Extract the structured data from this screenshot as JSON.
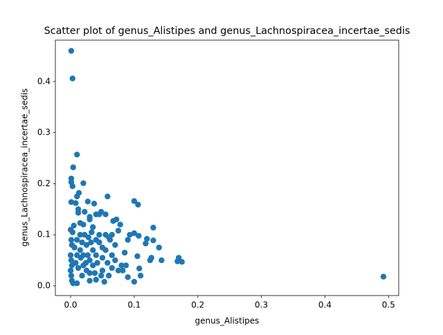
{
  "chart_data": {
    "type": "scatter",
    "title": "Scatter plot of genus_Alistipes and genus_Lachnospiracea_incertae_sedis",
    "xlabel": "genus_Alistipes",
    "ylabel": "genus_Lachnospiracea_incertae_sedis",
    "color": "#1f77b4",
    "xlim": [
      -0.024,
      0.516
    ],
    "ylim": [
      -0.019,
      0.481
    ],
    "xticks": [
      {
        "value": 0,
        "label": "0.0"
      },
      0.1,
      0.2,
      0.3,
      0.4,
      0.5
    ],
    "yticks": [
      {
        "value": 0,
        "label": "0.0"
      },
      0.1,
      0.2,
      0.3,
      0.4
    ],
    "x": [
      0.001,
      0.003,
      0.01,
      0.004,
      0.001,
      0.001,
      0.02,
      0.003,
      0.013,
      0.01,
      0.058,
      0.001,
      0.008,
      0.027,
      0.037,
      0.1,
      0.106,
      0.492,
      0.17,
      0.175,
      0.168,
      0.143,
      0.139,
      0.13,
      0.13,
      0.12,
      0.118,
      0.125,
      0.127,
      0.11,
      0.1,
      0.09,
      0.108,
      0.105,
      0.1,
      0.107,
      0.09,
      0.093,
      0.087,
      0.08,
      0.075,
      0.078,
      0.075,
      0.072,
      0.067,
      0.065,
      0.06,
      0.062,
      0.055,
      0.048,
      0.04,
      0.045,
      0.03,
      0.03,
      0.022,
      0.012,
      0.012,
      0.035,
      0.02,
      0.015,
      0.005,
      0,
      0.003,
      0.001,
      0.002,
      0,
      0.001,
      0.002,
      0,
      0.001,
      0.002,
      0.004,
      0.01,
      0.03,
      0.04,
      0.053,
      0.06,
      0.05,
      0.01,
      0.015,
      0.02,
      0.025,
      0.03,
      0.035,
      0.04,
      0.045,
      0.05,
      0.055,
      0.02,
      0.025,
      0.03,
      0.035,
      0.04,
      0.015,
      0.01,
      0.012,
      0.018,
      0.022,
      0.028,
      0.033,
      0.045,
      0.05,
      0.058,
      0.065,
      0.07,
      0.07,
      0.085,
      0.082,
      0.065,
      0.008,
      0.006,
      0.018,
      0.027,
      0.038,
      0.042,
      0.048,
      0.016,
      0.024,
      0.032,
      0.055
    ],
    "y": [
      0.46,
      0.406,
      0.257,
      0.232,
      0.21,
      0.203,
      0.201,
      0.195,
      0.182,
      0.175,
      0.175,
      0.164,
      0.162,
      0.165,
      0.161,
      0.166,
      0.159,
      0.018,
      0.055,
      0.047,
      0.048,
      0.05,
      0.075,
      0.114,
      0.089,
      0.092,
      0.083,
      0.05,
      0.055,
      0.02,
      0.008,
      0.017,
      0.034,
      0.058,
      0.103,
      0.098,
      0.09,
      0.1,
      0.04,
      0.04,
      0.03,
      0.12,
      0.108,
      0.13,
      0.127,
      0.1,
      0.095,
      0.09,
      0.14,
      0.145,
      0.14,
      0.14,
      0.135,
      0.13,
      0.145,
      0.15,
      0.143,
      0.115,
      0.12,
      0.123,
      0.118,
      0.11,
      0.105,
      0.09,
      0.08,
      0.06,
      0.05,
      0.04,
      0.03,
      0.02,
      0.01,
      0.005,
      0.005,
      0.01,
      0.012,
      0.008,
      0.02,
      0.03,
      0.09,
      0.07,
      0.06,
      0.08,
      0.05,
      0.07,
      0.06,
      0.085,
      0.055,
      0.07,
      0.04,
      0.03,
      0.025,
      0.04,
      0.09,
      0.1,
      0.06,
      0.035,
      0.02,
      0.1,
      0.095,
      0.105,
      0.1,
      0.075,
      0.045,
      0.06,
      0.05,
      0.08,
      0.065,
      0.03,
      0.035,
      0.045,
      0.075,
      0.085,
      0.06,
      0.025,
      0.045,
      0.02,
      0.055,
      0.045,
      0.085,
      0.1
    ]
  }
}
